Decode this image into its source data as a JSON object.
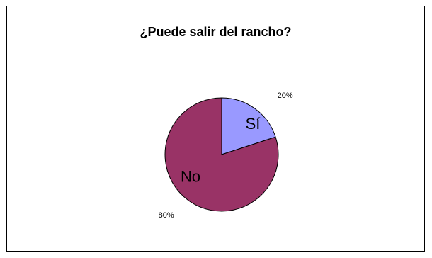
{
  "chart_data": {
    "type": "pie",
    "title": "¿Puede salir del rancho?",
    "slices": [
      {
        "label": "Sí",
        "value": 20,
        "value_label": "20%",
        "color": "#9999FF"
      },
      {
        "label": "No",
        "value": 80,
        "value_label": "80%",
        "color": "#993366"
      }
    ],
    "start_angle_deg": 0,
    "direction": "clockwise",
    "legend": "none",
    "border_color": "#000000"
  }
}
